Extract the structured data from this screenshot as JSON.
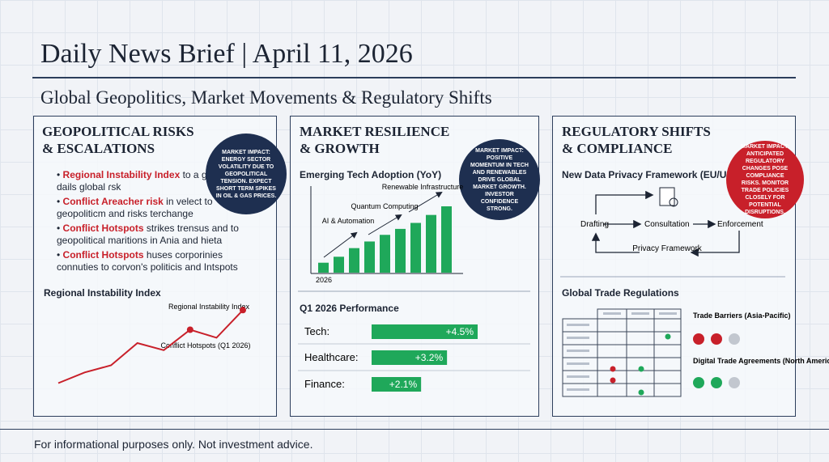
{
  "header": {
    "title": "Daily News Brief | April 11, 2026",
    "subtitle": "Global Geopolitics, Market Movements & Regulatory Shifts"
  },
  "panels": [
    {
      "title": [
        "GEOPOLITICAL RISKS",
        "& ESCALATIONS"
      ],
      "impact": "MARKET IMPACT: ENERGY SECTOR VOLATILITY DUE TO GEOPOLITICAL TENSION. EXPECT SHORT TERM SPIKES IN OIL & GAS PRICES.",
      "bullets": [
        {
          "term": "Regional Instability Index",
          "text": "to a geopolitical dails global ɾsk"
        },
        {
          "term": "Conflict Areacher risk",
          "text": "in velect to geopoliticm and risks terchange"
        },
        {
          "term": "Conflict Hotspots",
          "text": "strikes trensus and to geopolitical maritions in Ania and hieta"
        },
        {
          "term": "Conflict Hotspots",
          "text": "huses corporinies connuties to corvon's politicis and Intspots"
        }
      ],
      "chart": {
        "type": "line",
        "title": "Regional Instability Index",
        "values": [
          15,
          27,
          35,
          60,
          52,
          75,
          66,
          97
        ],
        "ylim": [
          0,
          100
        ],
        "color": "#c8202a",
        "annotations": [
          "Regional Instability Index",
          "Conflict Hotspots (Q1 2026)"
        ]
      }
    },
    {
      "title": [
        "MARKET RESILIENCE",
        "& GROWTH"
      ],
      "impact": "MARKET IMPACT: POSITIVE MOMENTUM IN TECH AND RENEWABLES DRIVE GLOBAL MARKET GROWTH. INVESTOR CONFIDENCE STRONG.",
      "chart": {
        "type": "bar",
        "title": "Emerging Tech Adoption (YoY)",
        "values": [
          15,
          24,
          37,
          47,
          57,
          66,
          75,
          87,
          100
        ],
        "ylim": [
          0,
          100
        ],
        "color": "#1fa85a",
        "annotations": [
          "AI & Automation",
          "Quantum Computing",
          "Renewable Infrastructure"
        ],
        "x_label": "2026"
      },
      "performance": {
        "type": "bar",
        "title": "Q1 2026 Performance",
        "categories": [
          "Tech:",
          "Healthcare:",
          "Finance:"
        ],
        "values": [
          4.5,
          3.2,
          2.1
        ],
        "value_labels": [
          "+4.5%",
          "+3.2%",
          "+2.1%"
        ],
        "xlim": [
          0,
          4.5
        ],
        "color": "#1fa85a"
      }
    },
    {
      "title": [
        "REGULATORY SHIFTS",
        "& COMPLIANCE"
      ],
      "impact": "MARKET IMPACT: ANTICIPATED REGULATORY CHANGES POSE COMPLIANCE RISKS. MONITOR TRADE POLICIES CLOSELY FOR POTENTIAL DISRUPTIONS.",
      "flow": {
        "title": "New Data Privacy Framework (EU/US)",
        "nodes": [
          "Drafting",
          "Consultation",
          "Enforcement",
          "Privacy Framework"
        ]
      },
      "trade": {
        "title": "Global Trade Regulations",
        "legend": [
          "Trade Barriers (Asia-Pacific)",
          "Digital Trade Agreements (North America)"
        ]
      }
    }
  ],
  "footer": "For informational purposes only. Not investment advice."
}
